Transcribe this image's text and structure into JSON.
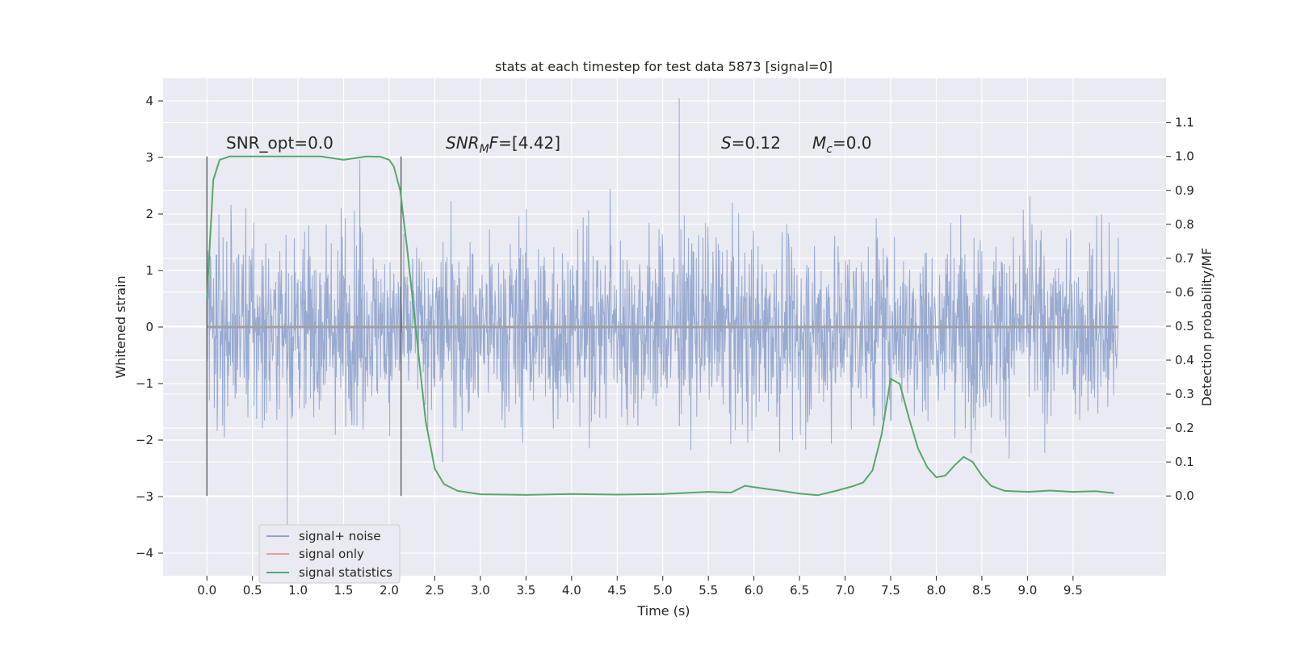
{
  "chart_data": {
    "type": "line",
    "title": "stats at each timestep for test data 5873 [signal=0]",
    "xlabel": "Time (s)",
    "ylabel": "Whitened strain",
    "y2label": "Detection probability/MF",
    "xlim": [
      -0.48,
      10.52
    ],
    "ylim": [
      -4.4,
      4.4
    ],
    "y2lim": [
      -0.235,
      1.23
    ],
    "x_ticks": [
      "0.0",
      "0.5",
      "1.0",
      "1.5",
      "2.0",
      "2.5",
      "3.0",
      "3.5",
      "4.0",
      "4.5",
      "5.0",
      "5.5",
      "6.0",
      "6.5",
      "7.0",
      "7.5",
      "8.0",
      "8.5",
      "9.0",
      "9.5"
    ],
    "y_ticks": [
      "4",
      "3",
      "2",
      "1",
      "0",
      "−1",
      "−2",
      "−3",
      "−4"
    ],
    "y2_ticks": [
      "1.1",
      "1.0",
      "0.9",
      "0.8",
      "0.7",
      "0.6",
      "0.5",
      "0.4",
      "0.3",
      "0.2",
      "0.1",
      "0.0"
    ],
    "grid": true,
    "legend_position": "lower-left",
    "legend": [
      {
        "label": "signal+ noise",
        "color": "#8fa3cc"
      },
      {
        "label": "signal only",
        "color": "#e5a28c"
      },
      {
        "label": "signal statistics",
        "color": "#55a868"
      }
    ],
    "annotations": {
      "snr_opt": "SNR_opt=0.0",
      "snr_mf": "SNRMF=[4.42]",
      "s_stat": "S=0.12",
      "mc": "Mc=0.0"
    },
    "window_markers_x": [
      0.0,
      2.13
    ],
    "noise_series": {
      "name": "signal+ noise",
      "x_range": [
        0.0,
        10.0
      ],
      "typical_amplitude": 1.3,
      "max_positive": 4.05,
      "max_negative": -3.5
    },
    "signal_only": {
      "name": "signal only",
      "value": 0.0
    },
    "signal_statistics": {
      "name": "signal statistics",
      "x": [
        0.0,
        0.07,
        0.14,
        0.25,
        0.5,
        1.0,
        1.25,
        1.5,
        1.75,
        1.9,
        2.0,
        2.05,
        2.12,
        2.2,
        2.3,
        2.4,
        2.5,
        2.6,
        2.75,
        3.0,
        3.5,
        4.0,
        4.5,
        5.0,
        5.5,
        5.75,
        5.9,
        6.1,
        6.3,
        6.5,
        6.7,
        6.9,
        7.1,
        7.2,
        7.3,
        7.4,
        7.5,
        7.6,
        7.7,
        7.8,
        7.9,
        8.0,
        8.1,
        8.2,
        8.3,
        8.4,
        8.5,
        8.6,
        8.75,
        9.0,
        9.25,
        9.5,
        9.75,
        9.95
      ],
      "y": [
        0.58,
        0.93,
        0.99,
        1.0,
        1.0,
        1.0,
        1.0,
        0.99,
        1.0,
        0.999,
        0.99,
        0.97,
        0.9,
        0.72,
        0.47,
        0.22,
        0.08,
        0.035,
        0.015,
        0.005,
        0.003,
        0.006,
        0.004,
        0.006,
        0.012,
        0.01,
        0.03,
        0.022,
        0.015,
        0.007,
        0.002,
        0.015,
        0.03,
        0.04,
        0.075,
        0.18,
        0.345,
        0.33,
        0.23,
        0.14,
        0.085,
        0.055,
        0.06,
        0.09,
        0.115,
        0.1,
        0.06,
        0.03,
        0.015,
        0.012,
        0.016,
        0.012,
        0.014,
        0.008
      ]
    }
  }
}
